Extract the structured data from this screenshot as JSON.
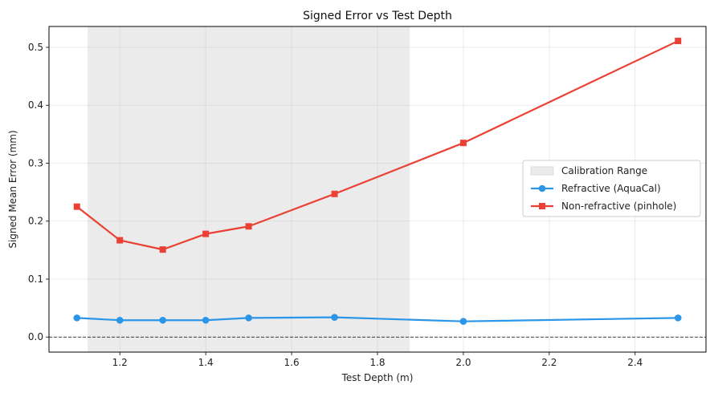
{
  "chart_data": {
    "type": "line",
    "title": "Signed Error vs Test Depth",
    "xlabel": "Test Depth (m)",
    "ylabel": "Signed Mean Error (mm)",
    "xlim": [
      1.035,
      2.565
    ],
    "ylim": [
      -0.026,
      0.536
    ],
    "xticks": [
      1.2,
      1.4,
      1.6,
      1.8,
      2.0,
      2.2,
      2.4
    ],
    "xtick_labels": [
      "1.2",
      "1.4",
      "1.6",
      "1.8",
      "2.0",
      "2.2",
      "2.4"
    ],
    "yticks": [
      0.0,
      0.1,
      0.2,
      0.3,
      0.4,
      0.5
    ],
    "ytick_labels": [
      "0.0",
      "0.1",
      "0.2",
      "0.3",
      "0.4",
      "0.5"
    ],
    "grid": true,
    "legend_position": "center-right",
    "reference_line": {
      "y": 0.0,
      "style": "dashed",
      "color": "#000000"
    },
    "shaded_region": {
      "name": "Calibration Range",
      "x0": 1.125,
      "x1": 1.875,
      "color": "#ebebeb"
    },
    "x": [
      1.1,
      1.2,
      1.3,
      1.4,
      1.5,
      1.7,
      2.0,
      2.5
    ],
    "series": [
      {
        "name": "Refractive (AquaCal)",
        "color": "#2b95e8",
        "marker": "circle",
        "values": [
          0.033,
          0.029,
          0.029,
          0.029,
          0.033,
          0.034,
          0.027,
          0.033
        ]
      },
      {
        "name": "Non-refractive (pinhole)",
        "color": "#eb4034",
        "marker": "square",
        "values": [
          0.225,
          0.167,
          0.151,
          0.178,
          0.191,
          0.247,
          0.335,
          0.511
        ]
      }
    ]
  }
}
